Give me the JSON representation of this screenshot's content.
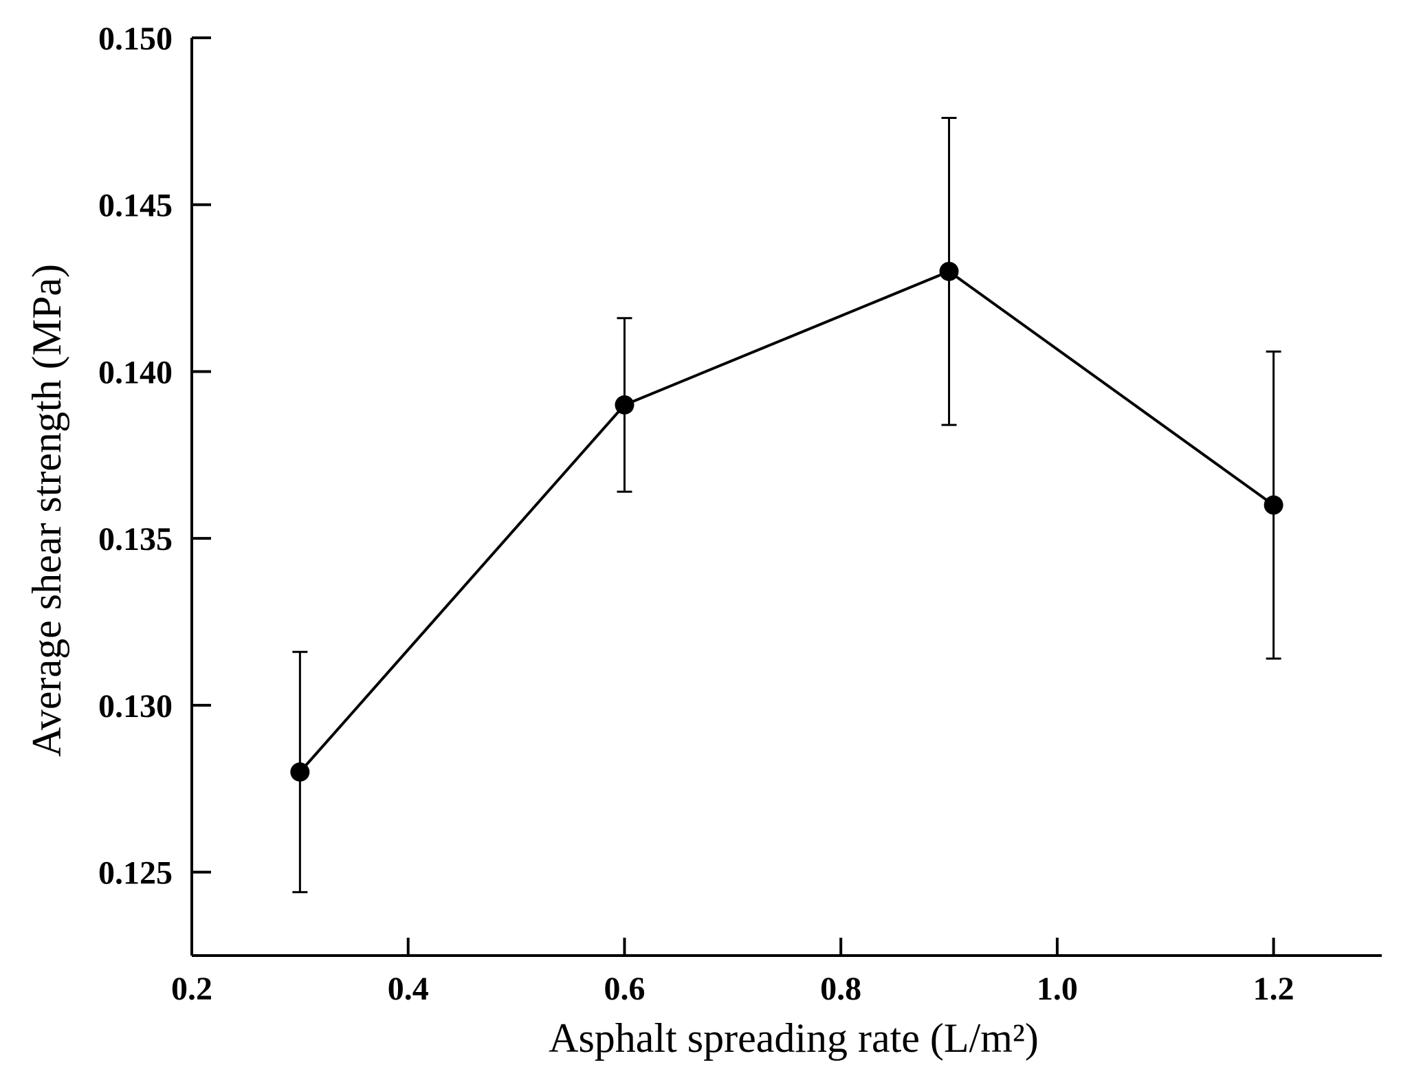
{
  "chart_data": {
    "type": "line",
    "title": "",
    "xlabel": "Asphalt spreading rate (L/m²)",
    "ylabel": "Average shear strength (MPa)",
    "xlim": [
      0.2,
      1.3
    ],
    "ylim": [
      0.1225,
      0.15
    ],
    "x_ticks": [
      0.2,
      0.4,
      0.6,
      0.8,
      1.0,
      1.2
    ],
    "x_tick_labels": [
      "0.2",
      "0.4",
      "0.6",
      "0.8",
      "1.0",
      "1.2"
    ],
    "y_ticks": [
      0.125,
      0.13,
      0.135,
      0.14,
      0.145,
      0.15
    ],
    "y_tick_labels": [
      "0.125",
      "0.130",
      "0.135",
      "0.140",
      "0.145",
      "0.150"
    ],
    "grid": false,
    "legend": "none",
    "series": [
      {
        "x": [
          0.3,
          0.6,
          0.9,
          1.2
        ],
        "y": [
          0.128,
          0.139,
          0.143,
          0.136
        ],
        "error": [
          0.0036,
          0.0026,
          0.0046,
          0.0046
        ],
        "color": "#000000",
        "marker": "filled-circle"
      }
    ]
  }
}
